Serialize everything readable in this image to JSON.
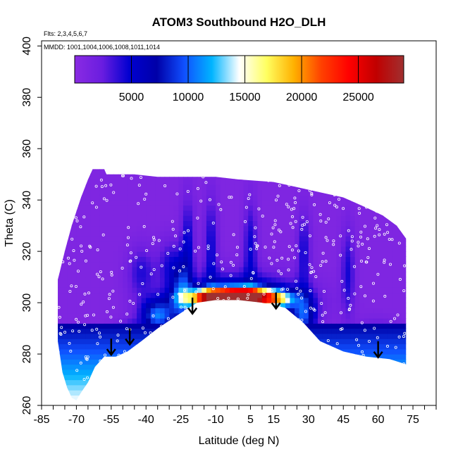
{
  "chart_data": {
    "type": "heatmap",
    "title": "ATOM3 Southbound H2O_DLH",
    "annotations": [
      "Flts: 2,3,4,5,6,7",
      "MMDD: 1001,1004,1006,1008,1011,1014"
    ],
    "xlabel": "Latitude (deg N)",
    "ylabel": "Theta (C)",
    "xlim": [
      -85,
      85
    ],
    "ylim": [
      260,
      402
    ],
    "x_ticks": [
      -85,
      -80,
      -75,
      -70,
      -65,
      -60,
      -55,
      -50,
      -45,
      -40,
      -35,
      -30,
      -25,
      -20,
      -15,
      -10,
      -5,
      0,
      5,
      10,
      15,
      20,
      25,
      30,
      35,
      40,
      45,
      50,
      55,
      60,
      65,
      70,
      75,
      80,
      85
    ],
    "x_tick_labels": [
      "-85",
      "-70",
      "-55",
      "-40",
      "-25",
      "-10",
      "5",
      "15",
      "30",
      "45",
      "60",
      "75"
    ],
    "x_tick_label_values": [
      -85,
      -70,
      -55,
      -40,
      -25,
      -10,
      5,
      15,
      30,
      45,
      60,
      75
    ],
    "y_ticks": [
      260,
      280,
      300,
      320,
      340,
      360,
      380,
      400
    ],
    "y_tick_labels": [
      "260",
      "280",
      "300",
      "320",
      "340",
      "360",
      "380",
      "400"
    ],
    "colorbar": {
      "range": [
        0,
        29000
      ],
      "ticks": [
        5000,
        10000,
        15000,
        20000,
        25000
      ],
      "tick_labels": [
        "5000",
        "10000",
        "15000",
        "20000",
        "25000"
      ],
      "colors": [
        "#8a2be2",
        "#6a1de0",
        "#0000d0",
        "#0000a8",
        "#1050ff",
        "#00b4ff",
        "#ffffff",
        "#ffff60",
        "#ffb000",
        "#ff4000",
        "#ff0000",
        "#c00000",
        "#a03030"
      ]
    },
    "arrows": [
      {
        "lat": -55,
        "theta_top": 286,
        "theta_tip": 280
      },
      {
        "lat": -47,
        "theta_top": 290,
        "theta_tip": 284
      },
      {
        "lat": -20,
        "theta_top": 302,
        "theta_tip": 296
      },
      {
        "lat": 16,
        "theta_top": 304,
        "theta_tip": 298
      },
      {
        "lat": 60,
        "theta_top": 285,
        "theta_tip": 279
      }
    ],
    "envelope": {
      "top": [
        [
          -78,
          309
        ],
        [
          -75,
          320
        ],
        [
          -72,
          330
        ],
        [
          -68,
          341
        ],
        [
          -65,
          348
        ],
        [
          -63,
          352
        ],
        [
          -58,
          352
        ],
        [
          -57,
          350
        ],
        [
          -45,
          350
        ],
        [
          -35,
          349
        ],
        [
          -10,
          349
        ],
        [
          0,
          348
        ],
        [
          15,
          347
        ],
        [
          25,
          345
        ],
        [
          35,
          343
        ],
        [
          45,
          341
        ],
        [
          55,
          337
        ],
        [
          62,
          334
        ],
        [
          68,
          330
        ],
        [
          72,
          325
        ]
      ],
      "bottom": [
        [
          72,
          276
        ],
        [
          65,
          278
        ],
        [
          55,
          279
        ],
        [
          45,
          281
        ],
        [
          35,
          285
        ],
        [
          28,
          292
        ],
        [
          20,
          298
        ],
        [
          10,
          300
        ],
        [
          0,
          301
        ],
        [
          -10,
          301
        ],
        [
          -18,
          300
        ],
        [
          -25,
          296
        ],
        [
          -35,
          290
        ],
        [
          -42,
          285
        ],
        [
          -48,
          281
        ],
        [
          -53,
          279
        ],
        [
          -58,
          279
        ],
        [
          -62,
          275
        ],
        [
          -65,
          269
        ],
        [
          -68,
          265
        ],
        [
          -70,
          262
        ],
        [
          -72,
          263
        ],
        [
          -74,
          267
        ],
        [
          -76,
          273
        ],
        [
          -78,
          285
        ],
        [
          -78,
          300
        ]
      ]
    }
  }
}
